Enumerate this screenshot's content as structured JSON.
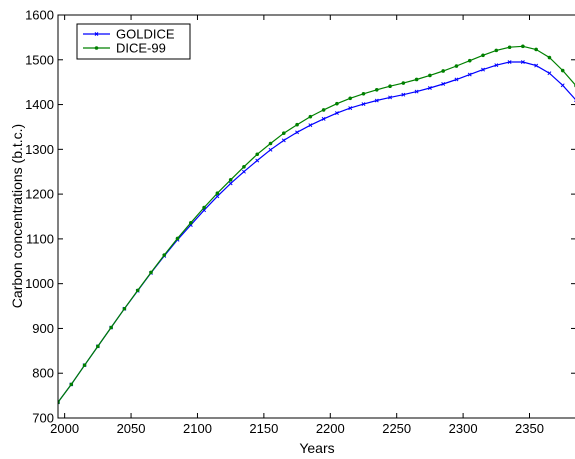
{
  "chart_data": {
    "type": "line",
    "title": "",
    "xlabel": "Years",
    "ylabel": "Carbon concentrations (b.t.c.)",
    "xlim": [
      1995,
      2385
    ],
    "ylim": [
      700,
      1600
    ],
    "xticks": [
      2000,
      2050,
      2100,
      2150,
      2200,
      2250,
      2300,
      2350
    ],
    "yticks": [
      700,
      800,
      900,
      1000,
      1100,
      1200,
      1300,
      1400,
      1500,
      1600
    ],
    "grid": false,
    "legend_position": "top-left",
    "x": [
      1995,
      2005,
      2015,
      2025,
      2035,
      2045,
      2055,
      2065,
      2075,
      2085,
      2095,
      2105,
      2115,
      2125,
      2135,
      2145,
      2155,
      2165,
      2175,
      2185,
      2195,
      2205,
      2215,
      2225,
      2235,
      2245,
      2255,
      2265,
      2275,
      2285,
      2295,
      2305,
      2315,
      2325,
      2335,
      2345,
      2355,
      2365,
      2375,
      2385
    ],
    "series": [
      {
        "name": "GOLDICE",
        "color": "#0000ff",
        "marker": "x",
        "values": [
          735,
          775,
          818,
          860,
          902,
          944,
          984,
          1024,
          1062,
          1098,
          1131,
          1164,
          1195,
          1224,
          1250,
          1275,
          1299,
          1320,
          1338,
          1354,
          1368,
          1381,
          1392,
          1401,
          1409,
          1416,
          1422,
          1429,
          1437,
          1446,
          1456,
          1467,
          1478,
          1488,
          1495,
          1495,
          1487,
          1470,
          1443,
          1410
        ]
      },
      {
        "name": "DICE-99",
        "color": "#008000",
        "marker": "dot",
        "values": [
          735,
          775,
          818,
          860,
          902,
          944,
          985,
          1025,
          1064,
          1101,
          1136,
          1170,
          1202,
          1232,
          1261,
          1289,
          1313,
          1336,
          1355,
          1373,
          1388,
          1402,
          1414,
          1424,
          1433,
          1441,
          1448,
          1456,
          1465,
          1475,
          1486,
          1498,
          1510,
          1521,
          1528,
          1530,
          1523,
          1505,
          1476,
          1442
        ]
      }
    ]
  }
}
